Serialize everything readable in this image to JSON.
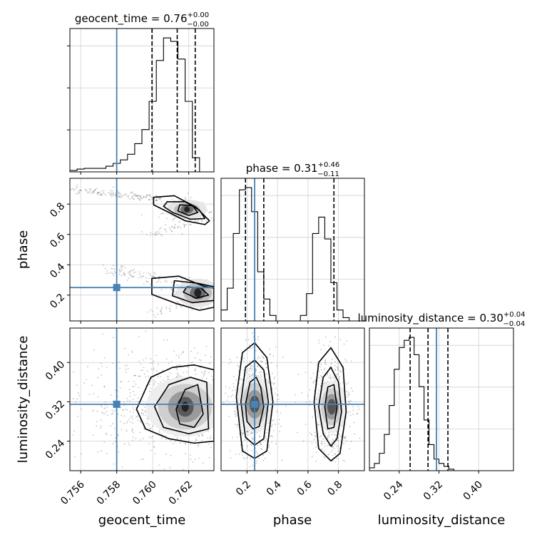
{
  "chart_data": {
    "type": "corner",
    "parameters": [
      "geocent_time",
      "phase",
      "luminosity_distance"
    ],
    "truths": {
      "geocent_time": 0.758,
      "phase": 0.25,
      "luminosity_distance": 0.315
    },
    "truth_color": "#4682b4",
    "titles": [
      {
        "name": "geocent_time",
        "value": "0.76",
        "plus": "+0.00",
        "minus": "−0.00"
      },
      {
        "name": "phase",
        "value": "0.31",
        "plus": "+0.46",
        "minus": "−0.11"
      },
      {
        "name": "luminosity_distance",
        "value": "0.30",
        "plus": "+0.04",
        "minus": "−0.04"
      }
    ],
    "xlabels": [
      "geocent_time",
      "phase",
      "luminosity_distance"
    ],
    "ylabels": [
      "phase",
      "luminosity_distance"
    ],
    "ranges": {
      "geocent_time": [
        0.7554,
        0.7634
      ],
      "phase": [
        0.03,
        0.97
      ],
      "luminosity_distance": [
        0.18,
        0.47
      ]
    },
    "ticks": {
      "geocent_time": [
        "0.756",
        "0.758",
        "0.760",
        "0.762"
      ],
      "phase": [
        "0.2",
        "0.4",
        "0.6",
        "0.8"
      ],
      "luminosity_distance": [
        "0.24",
        "0.32",
        "0.40"
      ]
    },
    "quantiles": {
      "geocent_time": [
        0.75996,
        0.76136,
        0.76236
      ],
      "phase": [
        0.19,
        0.31,
        0.77
      ],
      "luminosity_distance": [
        0.262,
        0.298,
        0.338
      ]
    },
    "hist_geocent_time": {
      "edges_start": 0.7554,
      "bin_width": 0.0004,
      "counts": [
        2,
        4,
        5,
        5,
        5,
        8,
        12,
        17,
        25,
        40,
        60,
        100,
        158,
        190,
        185,
        160,
        100,
        20
      ]
    },
    "hist_phase": {
      "edges_start": 0.03,
      "bin_width": 0.04,
      "counts": [
        10,
        30,
        80,
        120,
        122,
        100,
        45,
        20,
        5,
        0,
        0,
        0,
        0,
        5,
        25,
        80,
        95,
        75,
        35,
        10,
        3,
        0,
        0
      ]
    },
    "hist_luminosity_distance": {
      "edges_start": 0.18,
      "bin_width": 0.01,
      "counts": [
        2,
        5,
        12,
        25,
        45,
        70,
        85,
        90,
        92,
        80,
        58,
        35,
        18,
        8,
        5,
        3,
        1,
        0,
        0
      ]
    },
    "contours": {
      "phase_vs_geocent_time": [
        {
          "level": "outer",
          "points": [
            [
              0.76005,
              0.845
            ],
            [
              0.7612,
              0.855
            ],
            [
              0.7624,
              0.78
            ],
            [
              0.76315,
              0.69
            ],
            [
              0.7629,
              0.665
            ],
            [
              0.7618,
              0.69
            ],
            [
              0.7609,
              0.745
            ],
            [
              0.76005,
              0.795
            ]
          ]
        },
        {
          "level": "middle",
          "points": [
            [
              0.7608,
              0.815
            ],
            [
              0.7618,
              0.815
            ],
            [
              0.7626,
              0.76
            ],
            [
              0.7629,
              0.705
            ],
            [
              0.7621,
              0.7
            ],
            [
              0.7611,
              0.745
            ],
            [
              0.7606,
              0.785
            ]
          ]
        },
        {
          "level": "inner",
          "points": [
            [
              0.7615,
              0.795
            ],
            [
              0.7622,
              0.79
            ],
            [
              0.7625,
              0.745
            ],
            [
              0.762,
              0.725
            ],
            [
              0.7614,
              0.755
            ]
          ]
        },
        {
          "level": "outer",
          "points": [
            [
              0.75995,
              0.31
            ],
            [
              0.76145,
              0.325
            ],
            [
              0.7628,
              0.26
            ],
            [
              0.7634,
              0.245
            ],
            [
              0.7634,
              0.12
            ],
            [
              0.7626,
              0.1
            ],
            [
              0.7613,
              0.145
            ],
            [
              0.75995,
              0.205
            ]
          ]
        },
        {
          "level": "middle",
          "points": [
            [
              0.7612,
              0.295
            ],
            [
              0.7624,
              0.28
            ],
            [
              0.7634,
              0.255
            ],
            [
              0.7634,
              0.165
            ],
            [
              0.7622,
              0.15
            ],
            [
              0.7611,
              0.195
            ]
          ]
        },
        {
          "level": "inner",
          "points": [
            [
              0.7619,
              0.255
            ],
            [
              0.7627,
              0.245
            ],
            [
              0.7631,
              0.2
            ],
            [
              0.7624,
              0.18
            ],
            [
              0.7617,
              0.22
            ]
          ]
        }
      ],
      "luminosity_distance_vs_geocent_time": [
        {
          "level": "outer",
          "points": [
            [
              0.7591,
              0.305
            ],
            [
              0.7599,
              0.37
            ],
            [
              0.7611,
              0.39
            ],
            [
              0.7623,
              0.395
            ],
            [
              0.7634,
              0.385
            ],
            [
              0.7634,
              0.24
            ],
            [
              0.7623,
              0.236
            ],
            [
              0.7609,
              0.245
            ],
            [
              0.7596,
              0.265
            ]
          ]
        },
        {
          "level": "middle",
          "points": [
            [
              0.7601,
              0.31
            ],
            [
              0.7609,
              0.355
            ],
            [
              0.7621,
              0.37
            ],
            [
              0.763,
              0.36
            ],
            [
              0.7631,
              0.265
            ],
            [
              0.762,
              0.255
            ],
            [
              0.7606,
              0.268
            ]
          ]
        },
        {
          "level": "inner",
          "points": [
            [
              0.7613,
              0.305
            ],
            [
              0.7618,
              0.345
            ],
            [
              0.7625,
              0.355
            ],
            [
              0.7628,
              0.295
            ],
            [
              0.7623,
              0.268
            ],
            [
              0.7615,
              0.275
            ]
          ]
        }
      ],
      "luminosity_distance_vs_phase": [
        {
          "level": "outer",
          "points": [
            [
              0.13,
              0.33
            ],
            [
              0.17,
              0.42
            ],
            [
              0.25,
              0.44
            ],
            [
              0.33,
              0.41
            ],
            [
              0.37,
              0.32
            ],
            [
              0.33,
              0.22
            ],
            [
              0.25,
              0.205
            ],
            [
              0.17,
              0.22
            ]
          ]
        },
        {
          "level": "middle",
          "points": [
            [
              0.16,
              0.32
            ],
            [
              0.19,
              0.39
            ],
            [
              0.25,
              0.405
            ],
            [
              0.31,
              0.385
            ],
            [
              0.34,
              0.32
            ],
            [
              0.31,
              0.245
            ],
            [
              0.25,
              0.232
            ],
            [
              0.19,
              0.248
            ]
          ]
        },
        {
          "level": "inner",
          "points": [
            [
              0.19,
              0.315
            ],
            [
              0.22,
              0.36
            ],
            [
              0.26,
              0.37
            ],
            [
              0.29,
              0.35
            ],
            [
              0.31,
              0.31
            ],
            [
              0.28,
              0.27
            ],
            [
              0.24,
              0.265
            ],
            [
              0.2,
              0.28
            ]
          ]
        },
        {
          "level": "outer",
          "points": [
            [
              0.64,
              0.32
            ],
            [
              0.67,
              0.4
            ],
            [
              0.75,
              0.43
            ],
            [
              0.83,
              0.39
            ],
            [
              0.85,
              0.3
            ],
            [
              0.81,
              0.215
            ],
            [
              0.75,
              0.2
            ],
            [
              0.67,
              0.225
            ]
          ]
        },
        {
          "level": "middle",
          "points": [
            [
              0.67,
              0.31
            ],
            [
              0.7,
              0.37
            ],
            [
              0.75,
              0.39
            ],
            [
              0.8,
              0.36
            ],
            [
              0.82,
              0.3
            ],
            [
              0.79,
              0.245
            ],
            [
              0.75,
              0.23
            ],
            [
              0.7,
              0.255
            ]
          ]
        },
        {
          "level": "inner",
          "points": [
            [
              0.71,
              0.31
            ],
            [
              0.73,
              0.35
            ],
            [
              0.77,
              0.355
            ],
            [
              0.79,
              0.31
            ],
            [
              0.77,
              0.268
            ],
            [
              0.73,
              0.265
            ]
          ]
        }
      ]
    },
    "grid": true
  }
}
